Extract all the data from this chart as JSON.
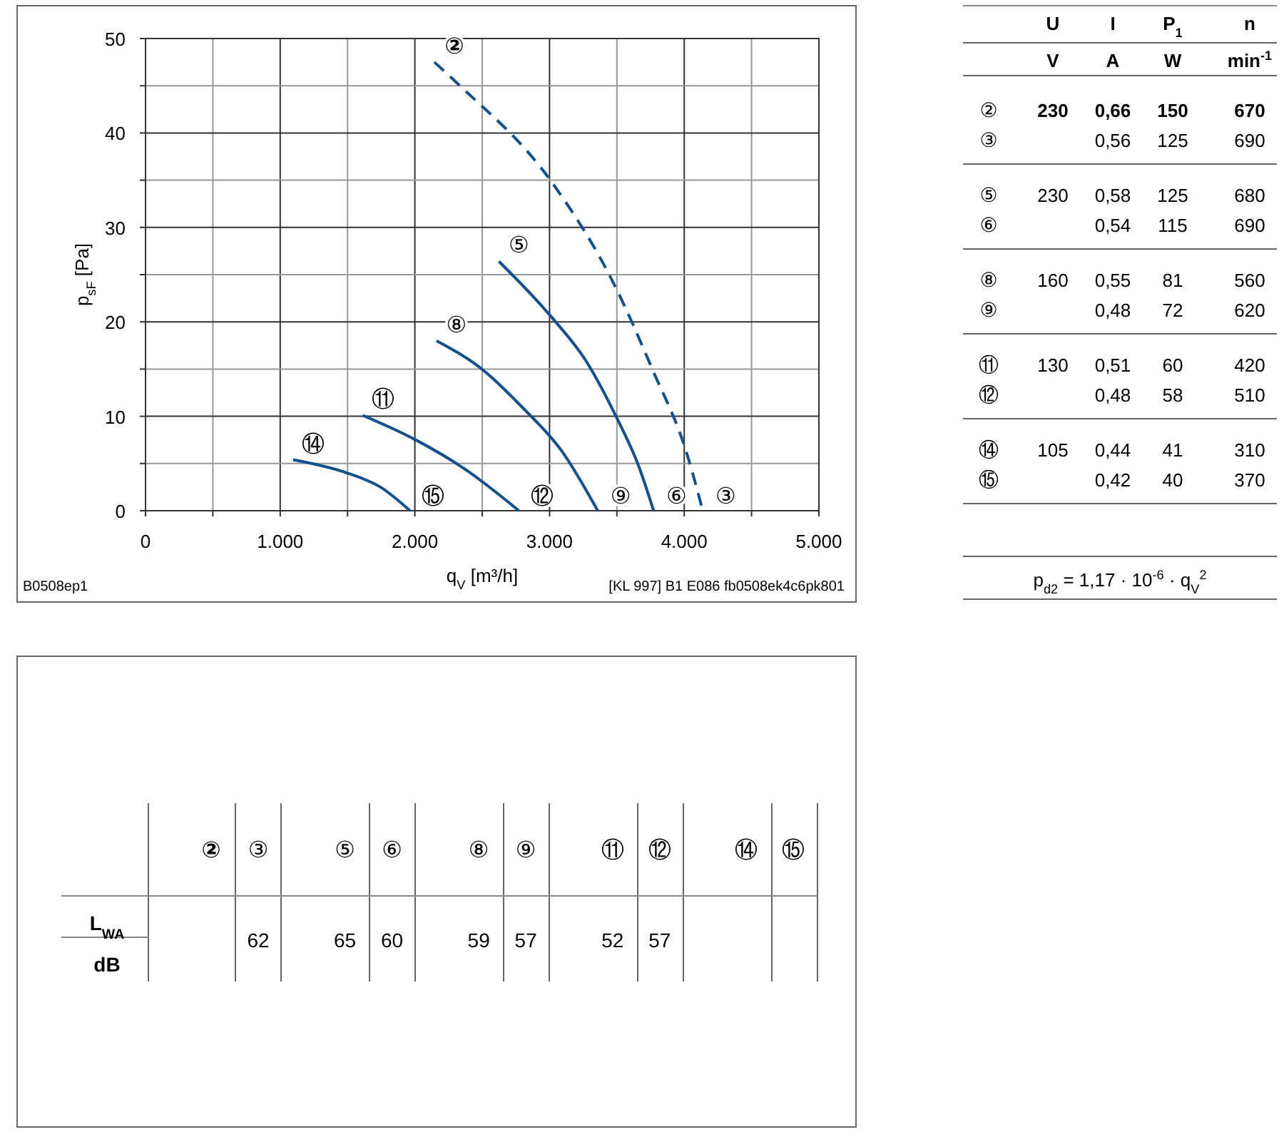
{
  "chart_data": [
    {
      "type": "line",
      "xlabel": "q$_{V}$ [m³/h]",
      "ylabel": "p$_{sF}$ [Pa]",
      "xlim": [
        0,
        5000
      ],
      "ylim": [
        0,
        50
      ],
      "xticks": [
        0,
        {
          "value": 500,
          "label": null
        },
        {
          "value": 1000,
          "label": "1.000"
        },
        {
          "value": 1500,
          "label": null
        },
        {
          "value": 2000,
          "label": "2.000"
        },
        {
          "value": 2500,
          "label": null
        },
        {
          "value": 3000,
          "label": "3.000"
        },
        {
          "value": 3500,
          "label": null
        },
        {
          "value": 4000,
          "label": "4.000"
        },
        {
          "value": 4500,
          "label": null
        },
        {
          "value": 5000,
          "label": "5.000"
        }
      ],
      "yticks": [
        0,
        {
          "value": 5,
          "label": null
        },
        10,
        {
          "value": 15,
          "label": null
        },
        20,
        {
          "value": 25,
          "label": null
        },
        30,
        {
          "value": 35,
          "label": null
        },
        40,
        {
          "value": 45,
          "label": null
        },
        50
      ],
      "grid": true,
      "series": [
        {
          "color": "#14508c",
          "line_style": "dashed",
          "x": [
            2145,
            2312,
            3021,
            3482,
            3766,
            4014,
            4138
          ],
          "values": [
            47.5,
            45.3,
            34.7,
            23.9,
            14.9,
            6.3,
            0
          ]
        },
        {
          "color": "#14508c",
          "line_style": "solid",
          "x": [
            2624,
            3021,
            3269,
            3500,
            3660,
            3773
          ],
          "values": [
            26.4,
            20.4,
            15.9,
            9.8,
            4.8,
            0
          ]
        },
        {
          "color": "#14508c",
          "line_style": "solid",
          "x": [
            2160,
            2489,
            2808,
            3092,
            3358
          ],
          "values": [
            18,
            15.1,
            10.8,
            6.3,
            0
          ]
        },
        {
          "color": "#14508c",
          "line_style": "solid",
          "x": [
            1613,
            1993,
            2383,
            2773
          ],
          "values": [
            10.1,
            7.6,
            4.3,
            0
          ]
        },
        {
          "color": "#14508c",
          "line_style": "solid",
          "x": [
            1096,
            1496,
            1745,
            1964
          ],
          "values": [
            5.4,
            4,
            2.5,
            0
          ]
        }
      ],
      "annotations": [
        {
          "text": "②",
          "x": 2145,
          "y": 47.5
        },
        {
          "text": "③",
          "x": 4138,
          "y": 0
        },
        {
          "text": "⑤",
          "x": 2624,
          "y": 26.4
        },
        {
          "text": "⑥",
          "x": 3773,
          "y": 0
        },
        {
          "text": "⑧",
          "x": 2160,
          "y": 18
        },
        {
          "text": "⑨",
          "x": 3358,
          "y": 0
        },
        {
          "text": "⑪",
          "x": 1613,
          "y": 10.1
        },
        {
          "text": "⑫",
          "x": 2773,
          "y": 0
        },
        {
          "text": "⑭",
          "x": 1096,
          "y": 5.4
        },
        {
          "text": "⑮",
          "x": 1964,
          "y": 0
        },
        "B0508ep1",
        "[KL 997] B1 E086 fb0508ek4c6pk801"
      ]
    },
    {
      "type": "other",
      "categories": [
        "U",
        "I",
        "P$_{1}$",
        "n"
      ],
      "y_categories": [
        null,
        "②",
        "③",
        "⑤",
        "⑥",
        "⑧",
        "⑨",
        "⑪",
        "⑫",
        "⑭",
        "⑮"
      ],
      "cell_labels": [
        [
          "V",
          "A",
          "W",
          "min$^{-1}$"
        ],
        [
          "230",
          "0,66",
          "150",
          "670"
        ],
        [
          null,
          "0,56",
          "125",
          "690"
        ],
        [
          "230",
          "0,58",
          "125",
          "680"
        ],
        [
          null,
          "0,54",
          "115",
          "690"
        ],
        [
          "160",
          "0,55",
          "81",
          "560"
        ],
        [
          null,
          "0,48",
          "72",
          "620"
        ],
        [
          "130",
          "0,51",
          "60",
          "420"
        ],
        [
          null,
          "0,48",
          "58",
          "510"
        ],
        [
          "105",
          "0,44",
          "41",
          "310"
        ],
        [
          null,
          "0,42",
          "40",
          "370"
        ]
      ],
      "annotations": [
        "p$_{d2}$ = 1,17 · 10$^{-6}$ · q$_{V}$$^{2}$"
      ]
    },
    {
      "type": "other",
      "categories": [
        "②",
        "③",
        "⑤",
        "⑥",
        "⑧",
        "⑨",
        "⑪",
        "⑫",
        "⑭",
        "⑮"
      ],
      "y_categories": [
        "L$_{WA}$"
      ],
      "ylabel": "dB",
      "cell_labels": [
        [
          null,
          "62",
          "65",
          "60",
          "59",
          "57",
          "52",
          "57",
          null,
          null
        ]
      ]
    }
  ]
}
